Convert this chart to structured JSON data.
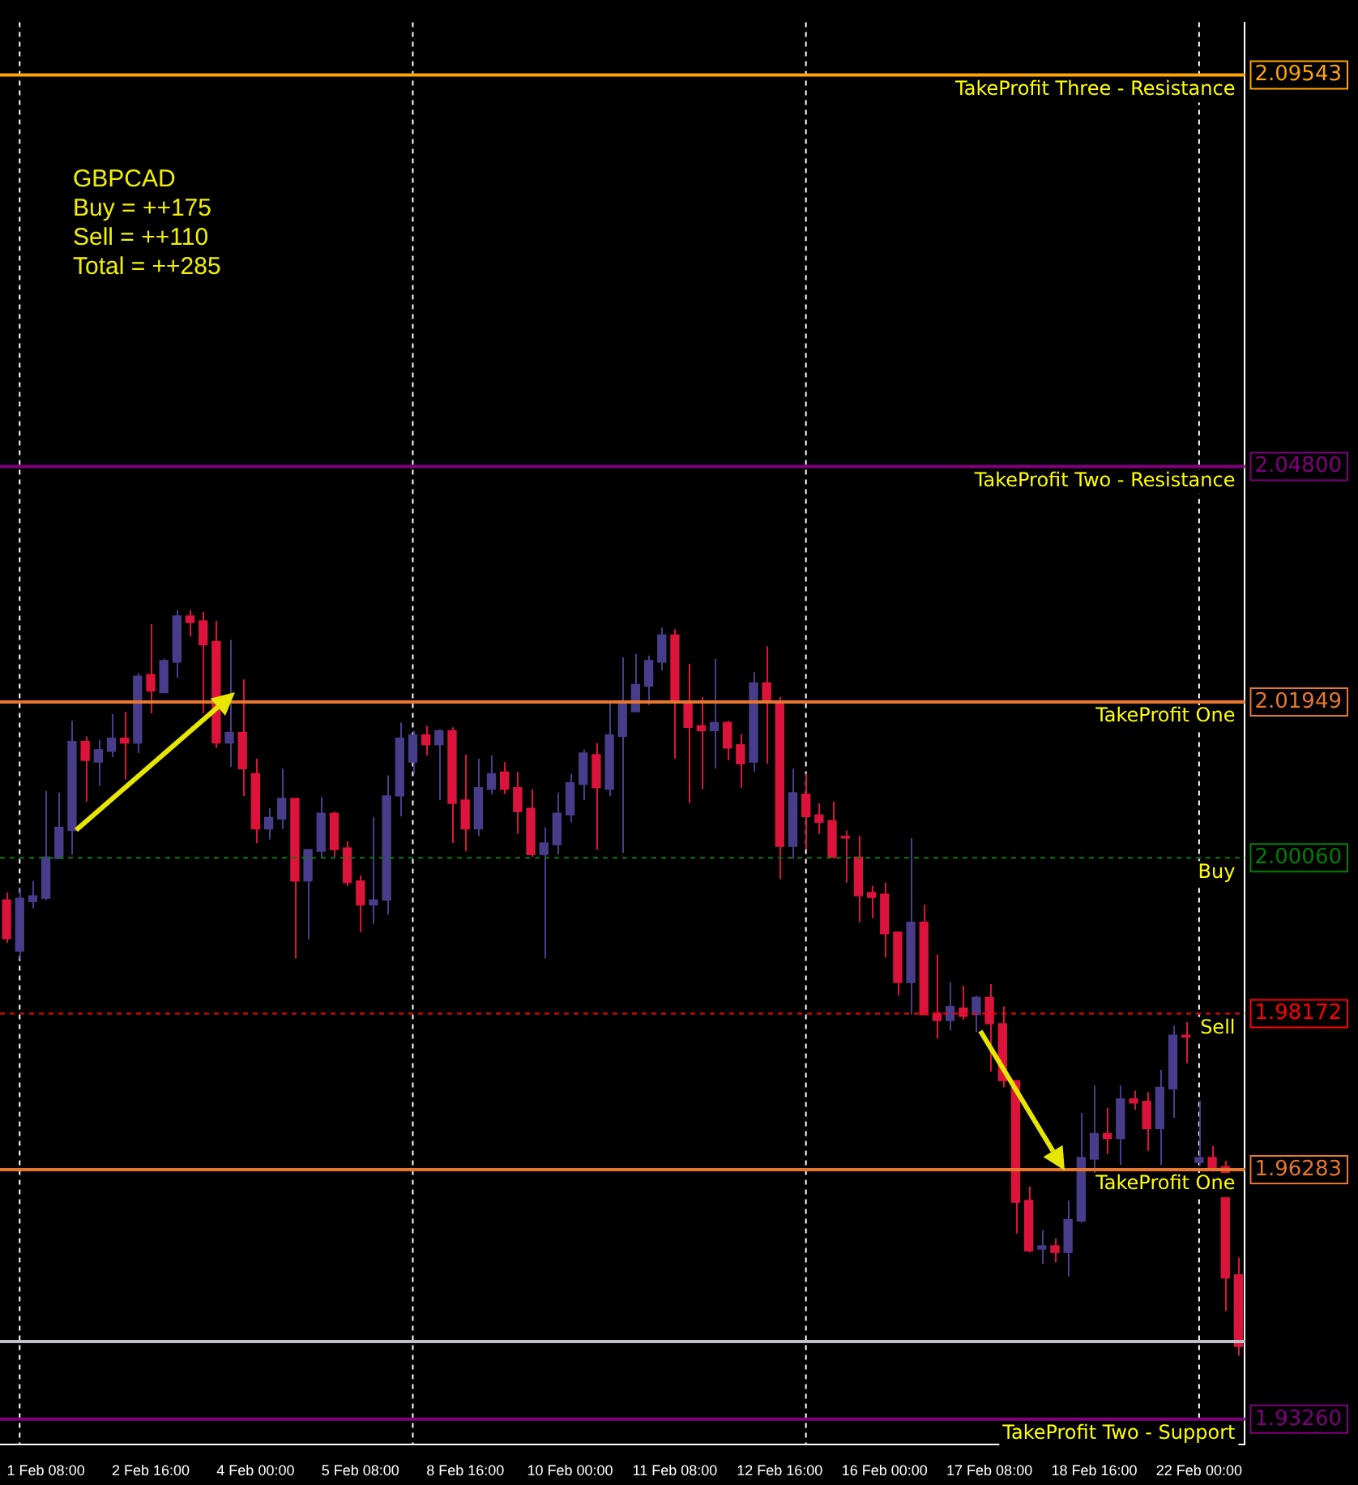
{
  "chart_data": {
    "type": "candlestick",
    "categories": [
      null,
      null,
      null,
      "1 Feb 08:00",
      null,
      null,
      null,
      null,
      null,
      null,
      null,
      "2 Feb 16:00",
      null,
      null,
      null,
      null,
      null,
      null,
      null,
      "4 Feb 00:00",
      null,
      null,
      null,
      null,
      null,
      null,
      null,
      "5 Feb 08:00",
      null,
      null,
      null,
      null,
      null,
      null,
      null,
      "8 Feb 16:00",
      null,
      null,
      null,
      null,
      null,
      null,
      null,
      "10 Feb 00:00",
      null,
      null,
      null,
      null,
      null,
      null,
      null,
      "11 Feb 08:00",
      null,
      null,
      null,
      null,
      null,
      null,
      null,
      "12 Feb 16:00",
      null,
      null,
      null,
      null,
      null,
      null,
      null,
      "16 Feb 00:00",
      null,
      null,
      null,
      null,
      null,
      null,
      null,
      "17 Feb 08:00",
      null,
      null,
      null,
      null,
      null,
      null,
      null,
      "18 Feb 16:00",
      null,
      null,
      null,
      null,
      null,
      null,
      null,
      "22 Feb 00:00",
      null,
      null,
      null
    ],
    "ohlc": [
      [
        1.9955,
        1.9964,
        1.9903,
        1.9908
      ],
      [
        1.9893,
        1.997,
        1.9883,
        1.9957
      ],
      [
        1.9953,
        1.9978,
        1.9945,
        1.996
      ],
      [
        1.9957,
        2.0087,
        1.9955,
        2.0007
      ],
      [
        2.0005,
        2.0085,
        2.0005,
        2.0043
      ],
      [
        2.0039,
        2.0172,
        2.001,
        2.0147
      ],
      [
        2.0147,
        2.0153,
        2.0074,
        2.0124
      ],
      [
        2.0122,
        2.0149,
        2.0093,
        2.0137
      ],
      [
        2.0135,
        2.018,
        2.0128,
        2.0151
      ],
      [
        2.0151,
        2.0183,
        2.0101,
        2.0145
      ],
      [
        2.0145,
        2.023,
        2.0133,
        2.0226
      ],
      [
        2.0228,
        2.0289,
        2.0181,
        2.0208
      ],
      [
        2.0206,
        2.0247,
        2.0206,
        2.0245
      ],
      [
        2.0243,
        2.0306,
        2.0224,
        2.0299
      ],
      [
        2.0299,
        2.0306,
        2.0274,
        2.0291
      ],
      [
        2.0293,
        2.0304,
        2.0181,
        2.0264
      ],
      [
        2.0268,
        2.0293,
        2.0139,
        2.0145
      ],
      [
        2.0145,
        2.027,
        2.0116,
        2.0158
      ],
      [
        2.0158,
        2.0222,
        2.0081,
        2.0114
      ],
      [
        2.0108,
        2.0126,
        2.0024,
        2.0041
      ],
      [
        2.0041,
        2.0066,
        2.0028,
        2.0055
      ],
      [
        2.0053,
        2.0114,
        2.0041,
        2.0078
      ],
      [
        2.0078,
        2.0078,
        1.9884,
        1.9978
      ],
      [
        1.9978,
        2.0016,
        1.9907,
        2.0016
      ],
      [
        2.0014,
        2.008,
        2.0005,
        2.006
      ],
      [
        2.006,
        2.0062,
        2.0007,
        2.0016
      ],
      [
        2.0018,
        2.0026,
        1.9972,
        1.9976
      ],
      [
        1.9978,
        1.9985,
        1.9916,
        1.9949
      ],
      [
        1.9949,
        2.0055,
        1.9926,
        1.9955
      ],
      [
        1.9955,
        2.0106,
        1.9937,
        2.0081
      ],
      [
        2.0081,
        2.017,
        2.0056,
        2.0151
      ],
      [
        2.0122,
        2.016,
        2.0108,
        2.0155
      ],
      [
        2.0155,
        2.0166,
        2.013,
        2.0143
      ],
      [
        2.0143,
        2.0162,
        2.0076,
        2.016
      ],
      [
        2.016,
        2.0164,
        2.0024,
        2.0072
      ],
      [
        2.0076,
        2.0131,
        2.0014,
        2.0041
      ],
      [
        2.0041,
        2.0126,
        2.0032,
        2.0091
      ],
      [
        2.0089,
        2.013,
        2.0083,
        2.0108
      ],
      [
        2.011,
        2.0122,
        2.0083,
        2.0089
      ],
      [
        2.0091,
        2.011,
        2.0035,
        2.0062
      ],
      [
        2.0066,
        2.0089,
        2.0007,
        2.001
      ],
      [
        2.001,
        2.0043,
        1.9884,
        2.0024
      ],
      [
        2.0022,
        2.0085,
        2.001,
        2.006
      ],
      [
        2.0058,
        2.0108,
        2.0049,
        2.0097
      ],
      [
        2.0095,
        2.0137,
        2.0076,
        2.0133
      ],
      [
        2.0131,
        2.0145,
        2.0016,
        2.0091
      ],
      [
        2.0089,
        2.0195,
        2.0081,
        2.0155
      ],
      [
        2.0153,
        2.0249,
        2.0012,
        2.0193
      ],
      [
        2.0183,
        2.0253,
        2.0183,
        2.0216
      ],
      [
        2.0214,
        2.0251,
        2.0191,
        2.0245
      ],
      [
        2.0243,
        2.0285,
        2.0233,
        2.0276
      ],
      [
        2.0276,
        2.0283,
        2.0126,
        2.0197
      ],
      [
        2.0195,
        2.0241,
        2.0072,
        2.0164
      ],
      [
        2.0166,
        2.0201,
        2.0089,
        2.016
      ],
      [
        2.016,
        2.0247,
        2.0114,
        2.017
      ],
      [
        2.017,
        2.0172,
        2.0124,
        2.0139
      ],
      [
        2.0143,
        2.0156,
        2.0091,
        2.012
      ],
      [
        2.0122,
        2.0231,
        2.011,
        2.0218
      ],
      [
        2.0218,
        2.0262,
        2.012,
        2.0195
      ],
      [
        2.0195,
        2.0201,
        1.998,
        2.002
      ],
      [
        2.002,
        2.0114,
        2.0005,
        2.0085
      ],
      [
        2.0083,
        2.0108,
        2.0016,
        2.0056
      ],
      [
        2.0058,
        2.0072,
        2.0035,
        2.0049
      ],
      [
        2.0051,
        2.0074,
        2.0005,
        2.0007
      ],
      [
        2.0032,
        2.0039,
        1.9976,
        2.003
      ],
      [
        2.0007,
        2.0033,
        1.9928,
        1.996
      ],
      [
        1.9964,
        1.9972,
        1.9933,
        1.9958
      ],
      [
        1.9962,
        1.9976,
        1.9885,
        1.9914
      ],
      [
        1.9916,
        1.9916,
        1.9839,
        1.9855
      ],
      [
        1.9855,
        2.003,
        1.9816,
        1.9928
      ],
      [
        1.9928,
        1.9949,
        1.9816,
        1.9816
      ],
      [
        1.9818,
        1.9889,
        1.9787,
        1.9809
      ],
      [
        1.9809,
        1.9855,
        1.9797,
        1.9826
      ],
      [
        1.9824,
        1.9851,
        1.981,
        1.9814
      ],
      [
        1.9816,
        1.9839,
        1.9795,
        1.9837
      ],
      [
        1.9837,
        1.9853,
        1.9747,
        1.9805
      ],
      [
        1.9805,
        1.9826,
        1.9728,
        1.9736
      ],
      [
        1.9736,
        1.9736,
        1.9551,
        1.9589
      ],
      [
        1.9591,
        1.9608,
        1.9528,
        1.953
      ],
      [
        1.9532,
        1.9555,
        1.9514,
        1.9536
      ],
      [
        1.9536,
        1.9545,
        1.9516,
        1.9528
      ],
      [
        1.9528,
        1.9591,
        1.9499,
        1.9568
      ],
      [
        1.9566,
        1.9697,
        1.9564,
        1.9643
      ],
      [
        1.9641,
        1.973,
        1.9624,
        1.9672
      ],
      [
        1.9672,
        1.9703,
        1.9647,
        1.9666
      ],
      [
        1.9666,
        1.973,
        1.9634,
        1.9714
      ],
      [
        1.9714,
        1.9724,
        1.9701,
        1.9709
      ],
      [
        1.9711,
        1.9722,
        1.9651,
        1.9678
      ],
      [
        1.9678,
        1.9749,
        1.9634,
        1.9728
      ],
      [
        1.9726,
        1.9803,
        1.9691,
        1.9791
      ],
      [
        1.9791,
        1.9807,
        1.9757,
        1.9789
      ],
      [
        1.9637,
        1.9712,
        1.9634,
        1.9643
      ],
      [
        1.9643,
        1.9657,
        1.9626,
        1.963
      ],
      [
        1.9632,
        1.9639,
        1.9457,
        1.9497
      ],
      [
        1.9501,
        1.9522,
        1.9403,
        1.9414
      ]
    ],
    "colors": [
      "#dc143c",
      "#483d8b",
      "#483d8b",
      "#483d8b",
      "#483d8b",
      "#483d8b",
      "#dc143c",
      "#483d8b",
      "#483d8b",
      "#dc143c",
      "#483d8b",
      "#dc143c",
      "#483d8b",
      "#483d8b",
      "#dc143c",
      "#dc143c",
      "#dc143c",
      "#483d8b",
      "#dc143c",
      "#dc143c",
      "#483d8b",
      "#483d8b",
      "#dc143c",
      "#483d8b",
      "#483d8b",
      "#dc143c",
      "#dc143c",
      "#dc143c",
      "#483d8b",
      "#483d8b",
      "#483d8b",
      "#483d8b",
      "#dc143c",
      "#483d8b",
      "#dc143c",
      "#dc143c",
      "#483d8b",
      "#483d8b",
      "#dc143c",
      "#dc143c",
      "#dc143c",
      "#483d8b",
      "#483d8b",
      "#483d8b",
      "#483d8b",
      "#dc143c",
      "#483d8b",
      "#483d8b",
      "#483d8b",
      "#483d8b",
      "#483d8b",
      "#dc143c",
      "#dc143c",
      "#dc143c",
      "#483d8b",
      "#dc143c",
      "#dc143c",
      "#483d8b",
      "#dc143c",
      "#dc143c",
      "#483d8b",
      "#dc143c",
      "#dc143c",
      "#dc143c",
      "#dc143c",
      "#dc143c",
      "#dc143c",
      "#dc143c",
      "#dc143c",
      "#483d8b",
      "#dc143c",
      "#dc143c",
      "#483d8b",
      "#dc143c",
      "#483d8b",
      "#dc143c",
      "#dc143c",
      "#dc143c",
      "#dc143c",
      "#483d8b",
      "#dc143c",
      "#483d8b",
      "#483d8b",
      "#483d8b",
      "#dc143c",
      "#483d8b",
      "#dc143c",
      "#dc143c",
      "#483d8b",
      "#483d8b",
      "#dc143c",
      "#483d8b",
      "#dc143c",
      "#dc143c",
      "#dc143c"
    ],
    "ylim": [
      1.9295,
      2.1018
    ],
    "yticks": [
      2.09543,
      {
        "value": 2.048,
        "label": "2.04800"
      },
      2.01949,
      {
        "value": 2.0006,
        "label": "2.00060"
      },
      1.98172,
      1.96283,
      {
        "value": 1.9326,
        "label": "1.93260"
      }
    ],
    "ref_lines": [
      {
        "axis": "y",
        "value": 2.09543,
        "label": "TakeProfit Three - Resistance",
        "color": "#ffa500",
        "line_style": "solid"
      },
      {
        "axis": "y",
        "value": 2.048,
        "label": "TakeProfit Two - Resistance",
        "color": "#800080",
        "line_style": "solid"
      },
      {
        "axis": "y",
        "value": 2.01949,
        "label": "TakeProfit One",
        "color": "#e8772e",
        "line_style": "solid"
      },
      {
        "axis": "y",
        "value": 2.0006,
        "label": "Buy",
        "color": "#008000",
        "line_style": "dashed"
      },
      {
        "axis": "y",
        "value": 1.98172,
        "label": "Sell",
        "color": "#ff0000",
        "line_style": "dashed"
      },
      {
        "axis": "y",
        "value": 1.96283,
        "label": "TakeProfit One",
        "color": "#e8772e",
        "line_style": "solid"
      },
      {
        "axis": "y",
        "value": 1.9326,
        "label": "TakeProfit Two - Support",
        "color": "#800080",
        "line_style": "solid"
      },
      {
        "axis": "y",
        "value": 1.942,
        "color": "#c0c0c8",
        "line_style": "solid"
      }
    ],
    "annotations": [
      "GBPCAD",
      "Buy = ++175",
      "Sell = ++110",
      "Total = ++285"
    ]
  }
}
